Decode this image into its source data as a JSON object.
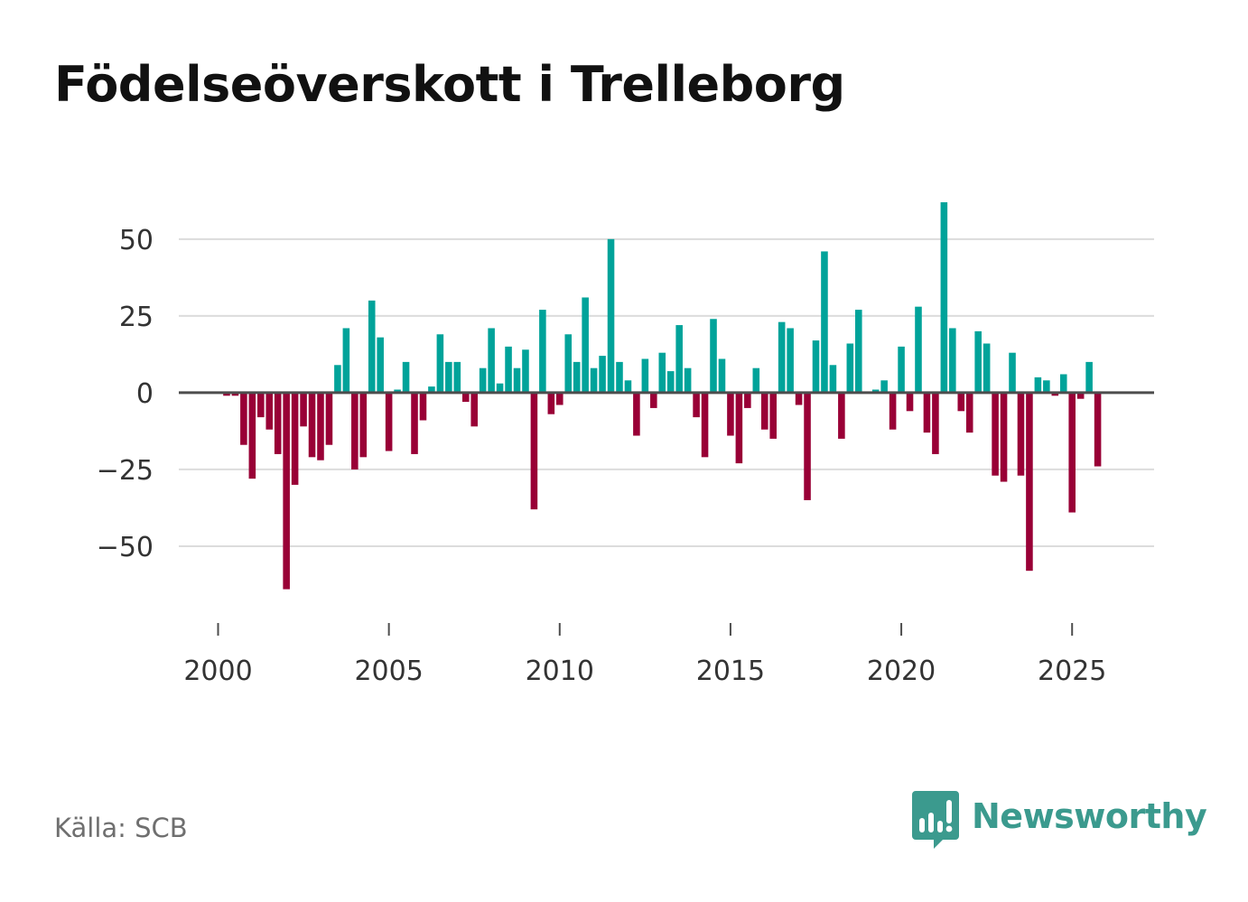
{
  "title": "Födelseöverskott i Trelleborg",
  "source": "Källa: SCB",
  "brand": {
    "name": "Newsworthy",
    "icon": "newsworthy-logo-icon"
  },
  "colors": {
    "positive": "#00a39a",
    "negative": "#990036",
    "grid": "#dcdcdc",
    "baseline": "#4d4d4d",
    "brand": "#3b9a8e"
  },
  "chart_data": {
    "type": "bar",
    "title": "Födelseöverskott i Trelleborg",
    "xlabel": "",
    "ylabel": "",
    "frequency": "quarterly",
    "x_start": 2000,
    "x_end": 2026.25,
    "xlim": [
      1998.85,
      2027.4
    ],
    "ylim": [
      -75,
      72
    ],
    "yticks": [
      -50,
      -25,
      0,
      25,
      50
    ],
    "ytick_labels": [
      "−50",
      "−25",
      "0",
      "25",
      "50"
    ],
    "xticks": [
      2000,
      2005,
      2010,
      2015,
      2020,
      2025
    ],
    "xtick_labels": [
      "2000",
      "2005",
      "2010",
      "2015",
      "2020",
      "2025"
    ],
    "grid": true,
    "legend": "none",
    "values": [
      0,
      -1,
      -1,
      -17,
      -28,
      -8,
      -12,
      -20,
      -64,
      -30,
      -11,
      -21,
      -22,
      -17,
      9,
      21,
      -25,
      -21,
      30,
      18,
      -19,
      1,
      10,
      -20,
      -9,
      2,
      19,
      10,
      10,
      -3,
      -11,
      8,
      21,
      3,
      15,
      8,
      14,
      -38,
      27,
      -7,
      -4,
      19,
      10,
      31,
      8,
      12,
      50,
      10,
      4,
      -14,
      11,
      -5,
      13,
      7,
      22,
      8,
      -8,
      -21,
      24,
      11,
      -14,
      -23,
      -5,
      8,
      -12,
      -15,
      23,
      21,
      -4,
      -35,
      17,
      46,
      9,
      -15,
      16,
      27,
      0,
      1,
      4,
      -12,
      15,
      -6,
      28,
      -13,
      -20,
      62,
      21,
      -6,
      -13,
      20,
      16,
      -27,
      -29,
      13,
      -27,
      -58,
      5,
      4,
      -1,
      6,
      -39,
      -2,
      10,
      -24
    ]
  }
}
